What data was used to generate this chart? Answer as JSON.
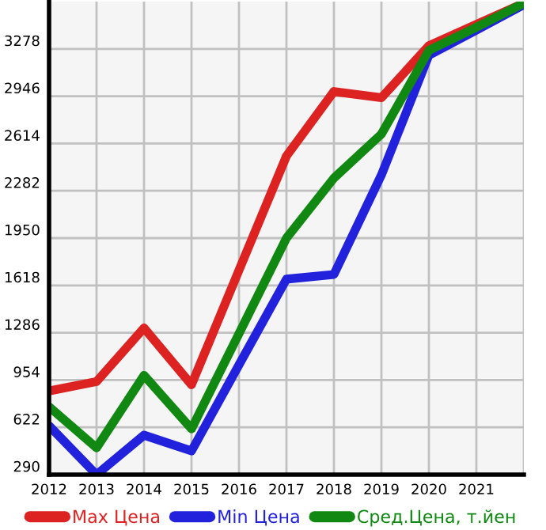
{
  "chart_data": {
    "type": "line",
    "x": [
      2012,
      2013,
      2014,
      2015,
      2016,
      2017,
      2018,
      2019,
      2020,
      2021,
      2022
    ],
    "series": [
      {
        "name": "Max Цена",
        "color": "#dd2222",
        "values": [
          877,
          943,
          1319,
          921,
          1724,
          2526,
          2979,
          2935,
          3300,
          3450,
          3599
        ]
      },
      {
        "name": "Min Цена",
        "color": "#2222dd",
        "values": [
          633,
          290,
          567,
          456,
          1060,
          1662,
          1695,
          2393,
          3234,
          3410,
          3588
        ]
      },
      {
        "name": "Сред.Цена, т.йен",
        "color": "#118811",
        "values": [
          766,
          478,
          987,
          611,
          1280,
          1950,
          2371,
          2680,
          3267,
          3430,
          3599
        ]
      }
    ],
    "xlim": [
      2012,
      2022
    ],
    "xticks": [
      2012,
      2013,
      2014,
      2015,
      2016,
      2017,
      2018,
      2019,
      2020,
      2021,
      {
        "value": 2022,
        "label": null
      }
    ],
    "ylim": [
      290,
      3610
    ],
    "yticks": [
      290,
      622,
      954,
      1286,
      1618,
      1950,
      2282,
      2614,
      2946,
      3278
    ],
    "grid": true,
    "legend": "bottom",
    "marker": "none",
    "line_style": "solid"
  }
}
